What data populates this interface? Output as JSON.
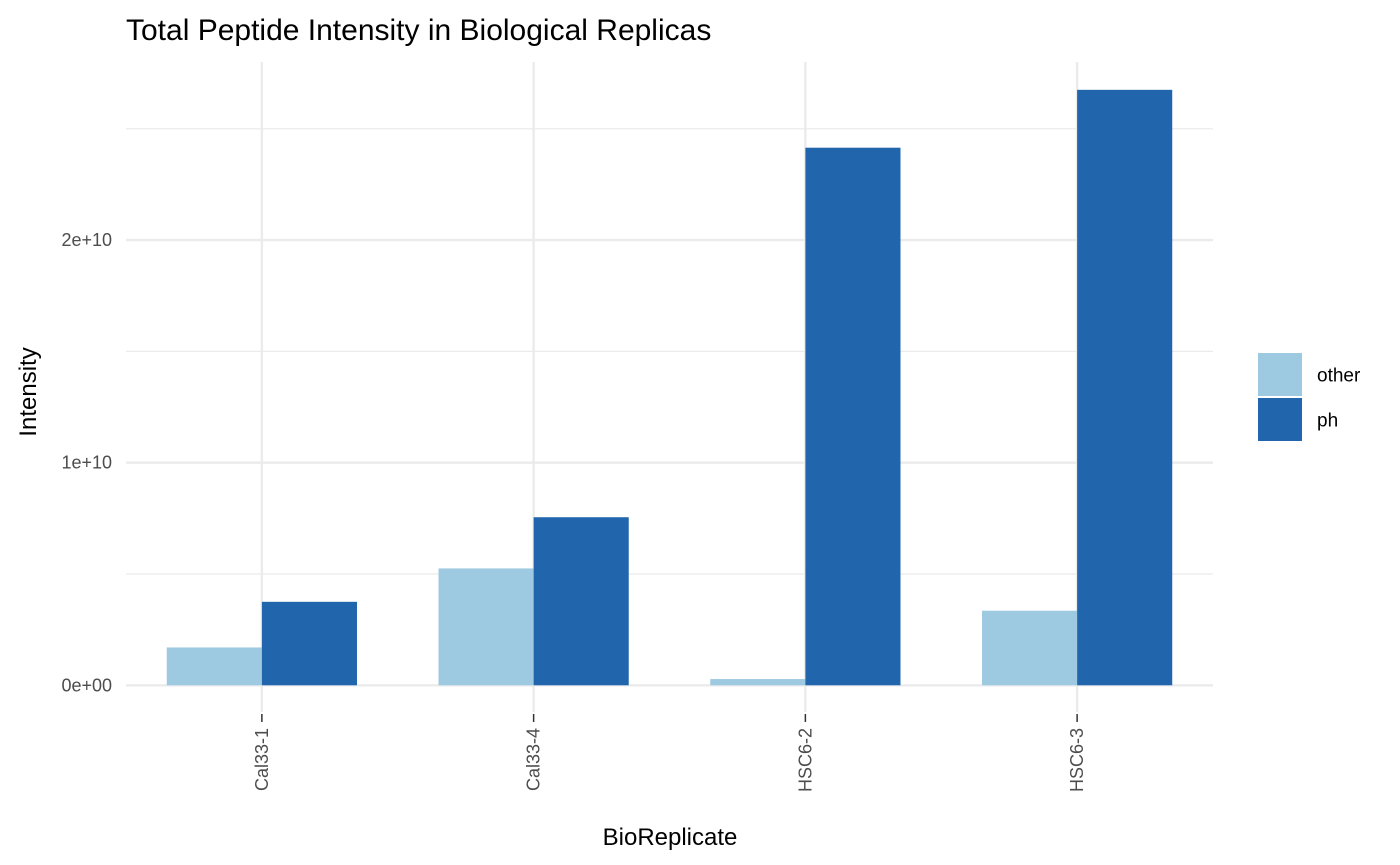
{
  "chart_data": {
    "type": "bar",
    "title": "Total Peptide Intensity in Biological Replicas",
    "xlabel": "BioReplicate",
    "ylabel": "Intensity",
    "categories": [
      "Cal33-1",
      "Cal33-4",
      "HSC6-2",
      "HSC6-3"
    ],
    "series": [
      {
        "name": "other",
        "color": "#9ecae1",
        "values": [
          1700000000,
          5250000000,
          280000000,
          3350000000
        ]
      },
      {
        "name": "ph",
        "color": "#2166ac",
        "values": [
          3750000000,
          7550000000,
          24150000000,
          26750000000
        ]
      }
    ],
    "y_ticks": [
      {
        "value": 0,
        "label": "0e+00"
      },
      {
        "value": 10000000000,
        "label": "1e+10"
      },
      {
        "value": 20000000000,
        "label": "2e+10"
      }
    ],
    "ylim": [
      -1200000000,
      28000000000
    ],
    "grid": true,
    "legend_position": "right"
  }
}
